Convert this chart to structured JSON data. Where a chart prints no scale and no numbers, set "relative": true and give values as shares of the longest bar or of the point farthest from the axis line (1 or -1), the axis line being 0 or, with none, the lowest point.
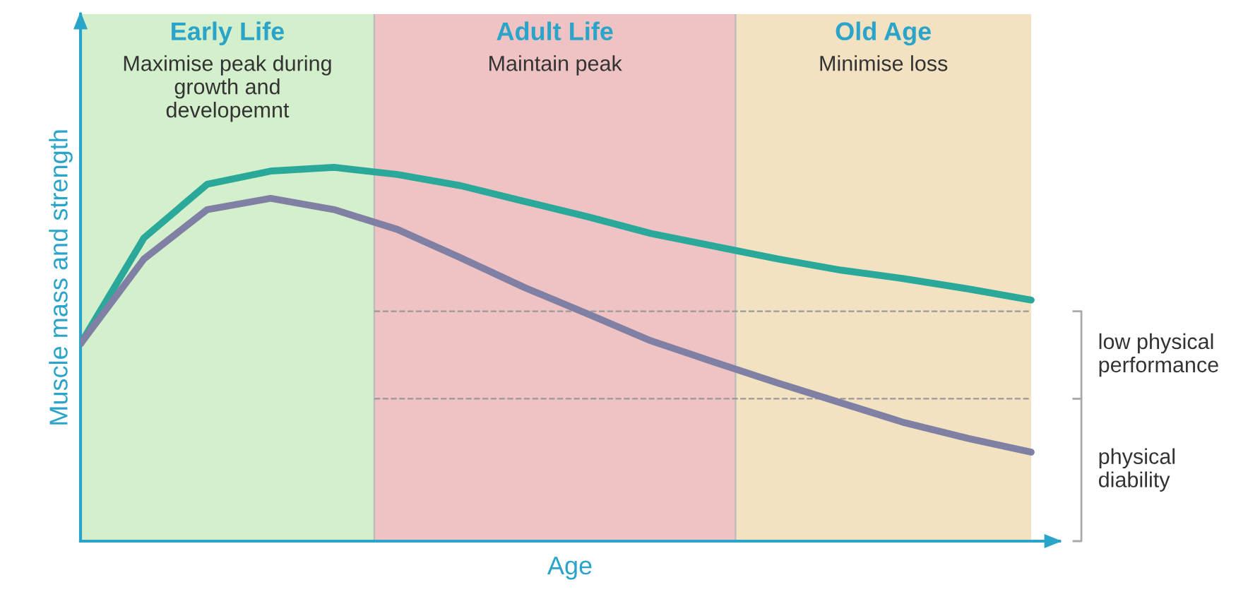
{
  "chart_data": {
    "type": "line",
    "relative": true,
    "xlabel": "Age",
    "ylabel": "Muscle mass and strength",
    "categories": [
      null,
      null,
      null,
      null,
      null,
      null,
      null,
      null,
      null,
      null,
      null,
      null,
      null,
      null,
      null,
      null
    ],
    "series": [
      {
        "color": "#2aa89a",
        "values": [
          0.528,
          0.811,
          0.955,
          0.99,
          1.0,
          0.981,
          0.951,
          0.909,
          0.868,
          0.823,
          0.789,
          0.755,
          0.725,
          0.702,
          0.675,
          0.645
        ]
      },
      {
        "color": "#7f80a4",
        "values": [
          0.528,
          0.755,
          0.887,
          0.917,
          0.887,
          0.834,
          0.758,
          0.679,
          0.608,
          0.536,
          0.479,
          0.423,
          0.37,
          0.317,
          0.275,
          0.238
        ]
      }
    ],
    "annotations": [
      "Early Life\nMaximise peak during\ngrowth and\ndevelopemnt",
      "Adult Life\nMaintain peak",
      "Old Age\nMinimise loss",
      "low physical\nperformance",
      "physical\ndiability"
    ],
    "ref_lines": [
      {
        "axis": "y",
        "value": 0.615,
        "color": "#999999",
        "line_style": "dashed"
      },
      {
        "axis": "y",
        "value": 0.381,
        "color": "#999999",
        "line_style": "dashed"
      }
    ],
    "legend": false,
    "grid": false
  }
}
